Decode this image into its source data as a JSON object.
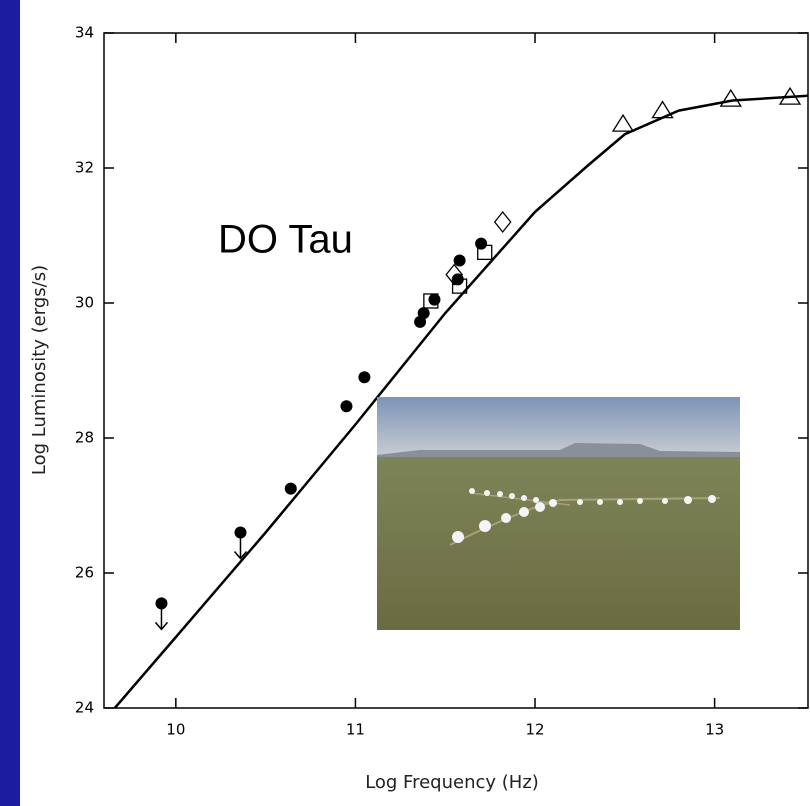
{
  "chart_data": {
    "type": "scatter",
    "annotation": "DO Tau",
    "xlabel": "Log Frequency (Hz)",
    "ylabel": "Log Luminosity (ergs/s)",
    "xlim": [
      9.6,
      13.52
    ],
    "ylim": [
      24,
      34
    ],
    "xticks": [
      10,
      11,
      12,
      13
    ],
    "yticks": [
      24,
      26,
      28,
      30,
      32,
      34
    ],
    "background_color": "#1c1ca0",
    "series": [
      {
        "marker": "circle",
        "color": "#000000",
        "x": [
          9.92,
          10.36,
          10.64,
          10.95,
          11.05,
          11.36,
          11.38,
          11.44,
          11.57,
          11.58,
          11.7
        ],
        "values": [
          25.55,
          26.6,
          27.25,
          28.47,
          28.9,
          29.72,
          29.85,
          30.05,
          30.35,
          30.63,
          30.88
        ],
        "upper_limit": [
          true,
          true,
          false,
          false,
          false,
          false,
          false,
          false,
          false,
          false,
          false
        ]
      },
      {
        "marker": "square",
        "color": "#000000",
        "x": [
          11.42,
          11.58,
          11.72
        ],
        "values": [
          30.03,
          30.25,
          30.75
        ]
      },
      {
        "marker": "diamond",
        "color": "#000000",
        "x": [
          11.55,
          11.82
        ],
        "values": [
          30.42,
          31.2
        ]
      },
      {
        "marker": "triangle",
        "color": "#000000",
        "x": [
          12.49,
          12.71,
          13.09,
          13.42
        ],
        "values": [
          32.65,
          32.85,
          33.02,
          33.05
        ]
      },
      {
        "marker": "line",
        "color": "#000000",
        "x": [
          9.66,
          10,
          10.5,
          11,
          11.5,
          12,
          12.3,
          12.5,
          12.8,
          13.1,
          13.52
        ],
        "values": [
          24,
          25.05,
          26.6,
          28.2,
          29.85,
          31.35,
          32.05,
          32.5,
          32.85,
          33.0,
          33.07
        ]
      }
    ]
  }
}
